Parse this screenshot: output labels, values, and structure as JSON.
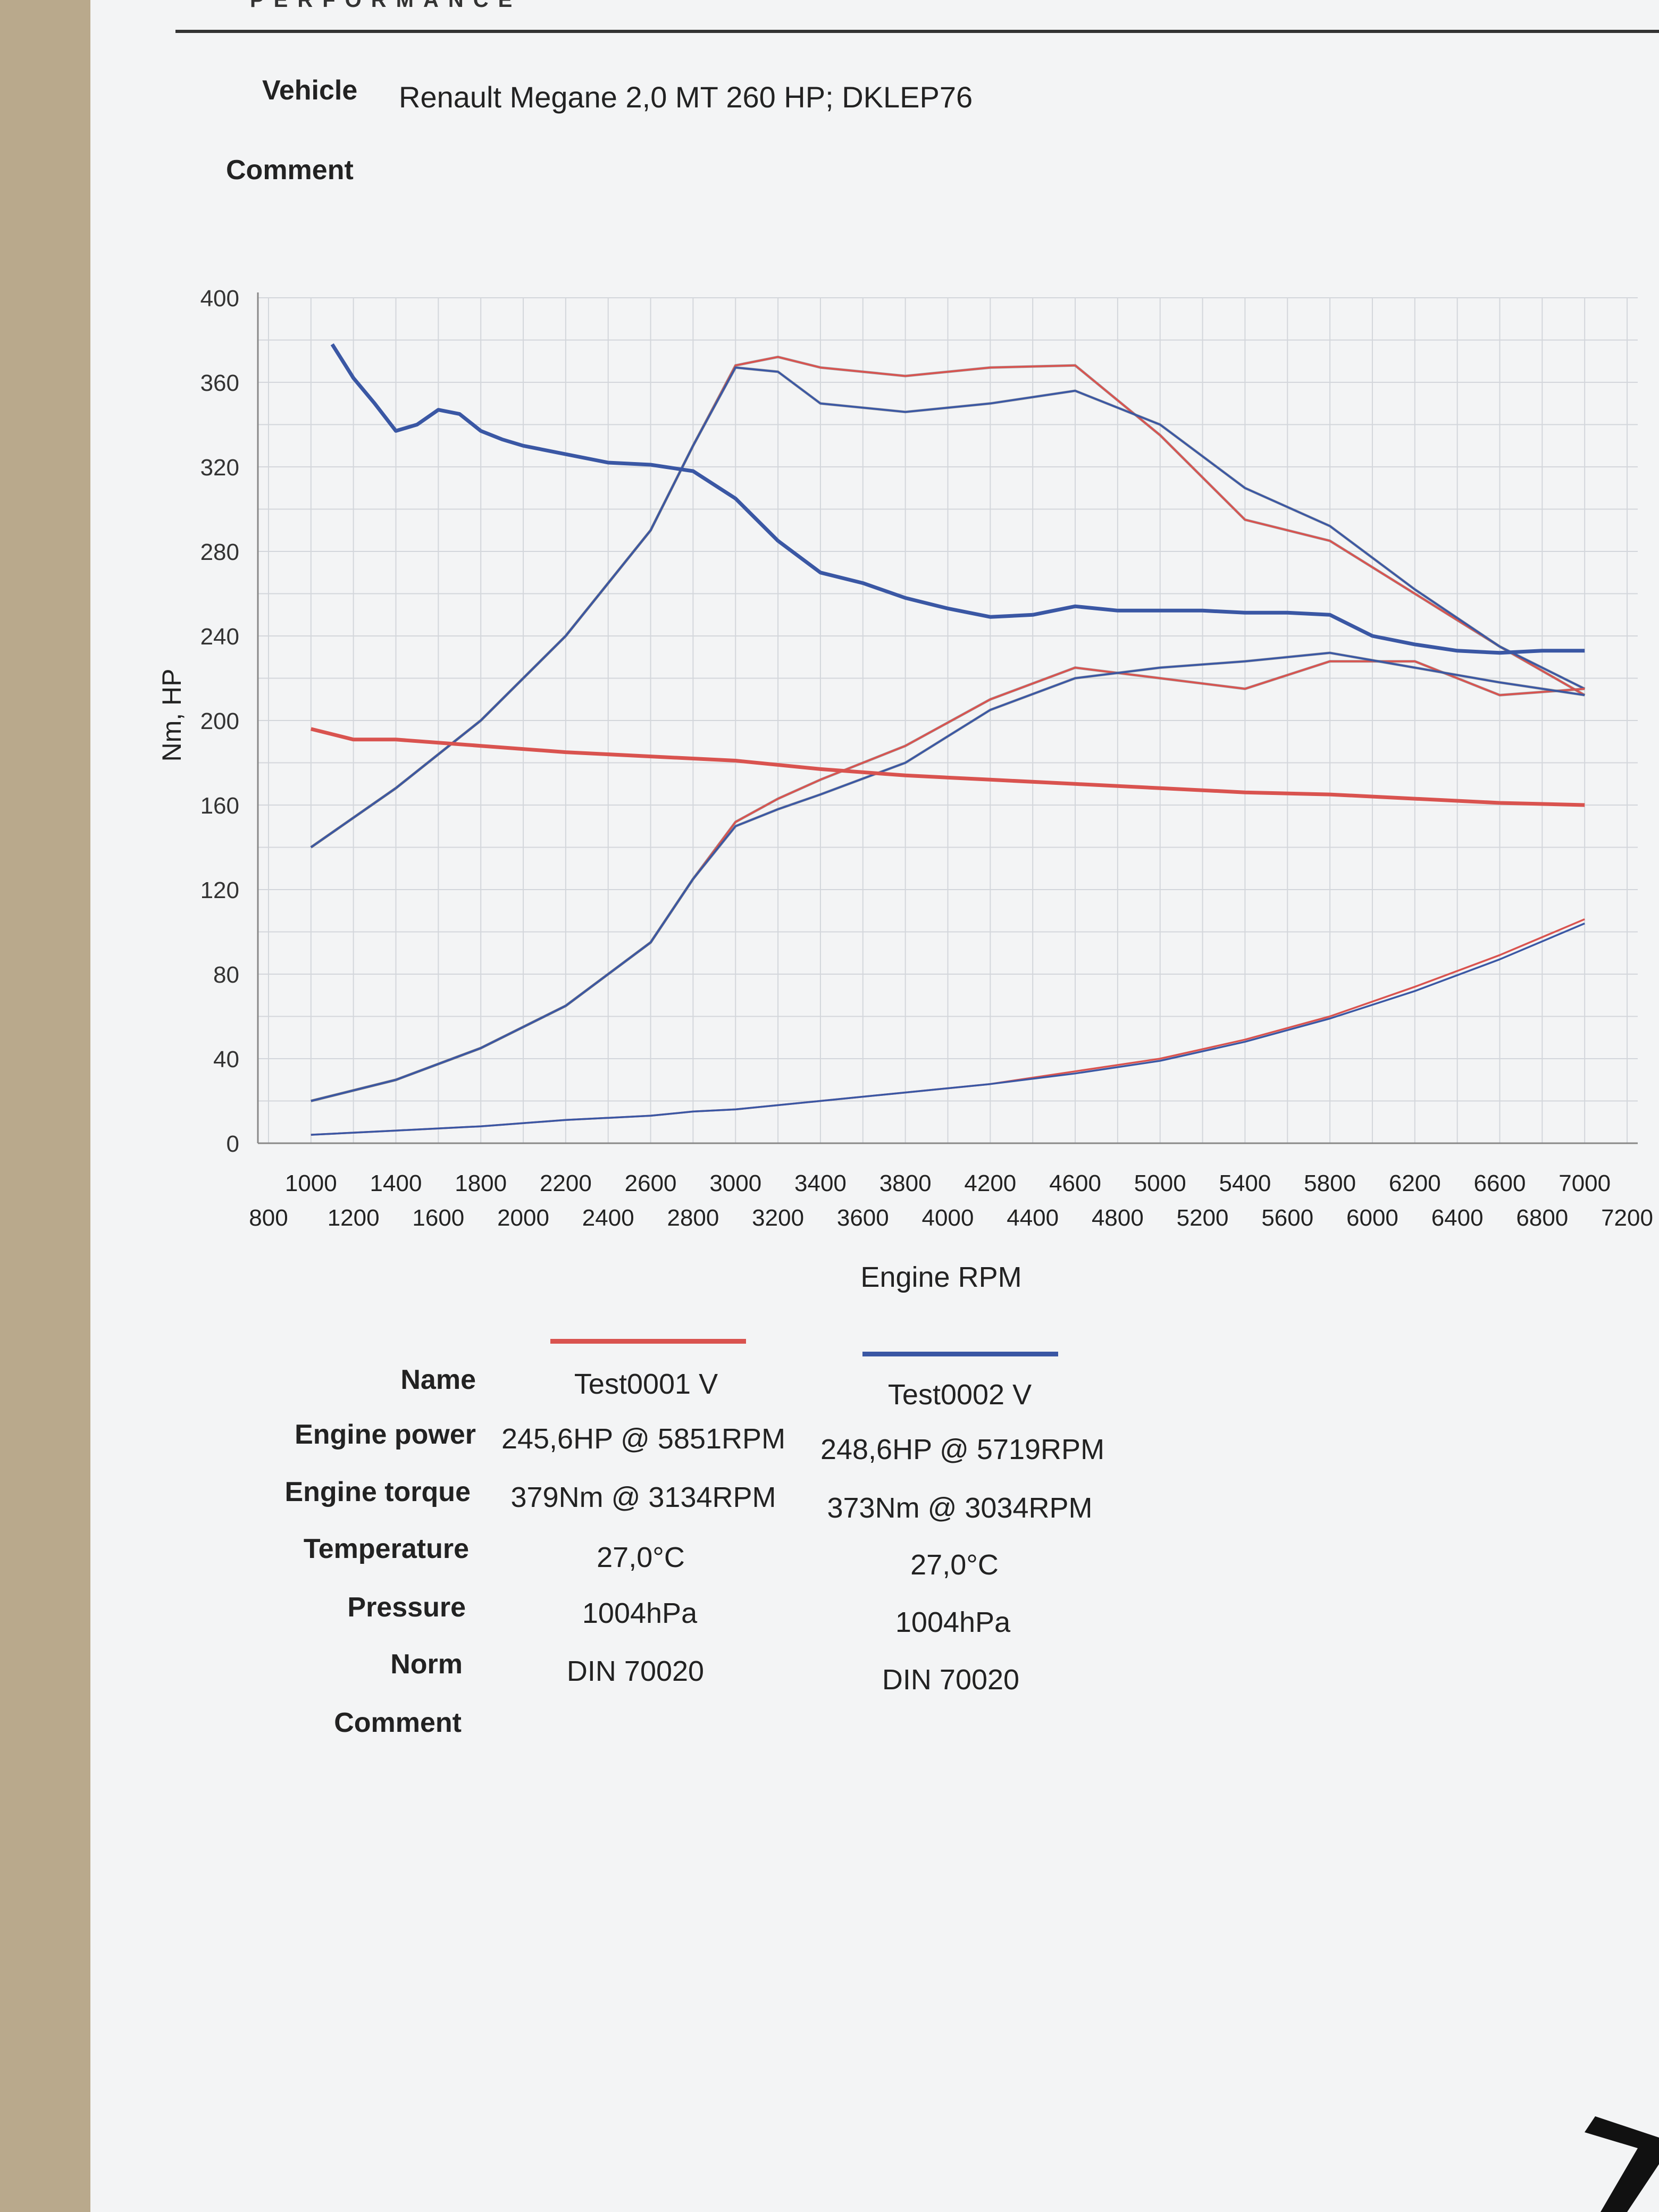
{
  "header": {
    "brand_text": "PERFORMANCE",
    "vehicle_label": "Vehicle",
    "vehicle_value": "Renault Megane 2,0 MT 260 HP; DKLEP76",
    "comment_label": "Comment"
  },
  "colors": {
    "red": "#d9534f",
    "blue": "#3a57a4",
    "grey": "#666a70",
    "grid": "#d3d6db"
  },
  "chart_data": {
    "type": "line",
    "ylabel": "Nm, HP",
    "xlabel": "Engine RPM",
    "xlim": [
      750,
      7250
    ],
    "ylim": [
      0,
      400
    ],
    "yticks": [
      0,
      40,
      80,
      120,
      160,
      200,
      240,
      280,
      320,
      360,
      400
    ],
    "xticks_upper": [
      1000,
      1400,
      1800,
      2200,
      2600,
      3000,
      3400,
      3800,
      4200,
      4600,
      5000,
      5400,
      5800,
      6200,
      6600,
      7000
    ],
    "xticks_lower": [
      800,
      1200,
      1600,
      2000,
      2400,
      2800,
      3200,
      3600,
      4000,
      4400,
      4800,
      5200,
      5600,
      6000,
      6400,
      6800,
      7200
    ],
    "grid": true,
    "series": [
      {
        "name": "Test0001 V",
        "kind": "torque",
        "color": "#d9534f",
        "x": [
          1000,
          1400,
          1800,
          2200,
          2600,
          2800,
          3000,
          3200,
          3400,
          3800,
          4200,
          4600,
          5000,
          5400,
          5800,
          6200,
          6600,
          7000
        ],
        "y": [
          140,
          168,
          200,
          240,
          290,
          330,
          368,
          372,
          367,
          363,
          367,
          368,
          335,
          295,
          285,
          260,
          235,
          212
        ]
      },
      {
        "name": "Test0002 V",
        "kind": "torque",
        "color": "#3a57a4",
        "x": [
          1000,
          1400,
          1800,
          2200,
          2600,
          2800,
          3000,
          3200,
          3400,
          3800,
          4200,
          4600,
          5000,
          5400,
          5800,
          6200,
          6600,
          7000
        ],
        "y": [
          140,
          168,
          200,
          240,
          290,
          330,
          367,
          365,
          350,
          346,
          350,
          356,
          340,
          310,
          292,
          262,
          235,
          215
        ]
      },
      {
        "name": "Test0001 V",
        "kind": "power",
        "color": "#d9534f",
        "x": [
          1000,
          1400,
          1800,
          2200,
          2600,
          2800,
          3000,
          3200,
          3400,
          3800,
          4200,
          4600,
          5000,
          5400,
          5800,
          6200,
          6600,
          7000
        ],
        "y": [
          20,
          30,
          45,
          65,
          95,
          125,
          152,
          163,
          172,
          188,
          210,
          225,
          220,
          215,
          228,
          228,
          212,
          215
        ]
      },
      {
        "name": "Test0002 V",
        "kind": "power",
        "color": "#3a57a4",
        "x": [
          1000,
          1400,
          1800,
          2200,
          2600,
          2800,
          3000,
          3200,
          3400,
          3800,
          4200,
          4600,
          5000,
          5400,
          5800,
          6200,
          6600,
          7000
        ],
        "y": [
          20,
          30,
          45,
          65,
          95,
          125,
          150,
          158,
          165,
          180,
          205,
          220,
          225,
          228,
          232,
          225,
          218,
          212
        ]
      },
      {
        "name": "",
        "kind": "loss",
        "color": "#d9534f",
        "x": [
          1000,
          1400,
          1800,
          2200,
          2600,
          2800,
          3000,
          3400,
          3800,
          4200,
          4600,
          5000,
          5400,
          5800,
          6200,
          6600,
          7000
        ],
        "y": [
          4,
          6,
          8,
          11,
          13,
          15,
          16,
          20,
          24,
          28,
          34,
          40,
          49,
          60,
          74,
          89,
          106
        ]
      },
      {
        "name": "",
        "kind": "loss",
        "color": "#3a57a4",
        "x": [
          1000,
          1400,
          1800,
          2200,
          2600,
          2800,
          3000,
          3400,
          3800,
          4200,
          4600,
          5000,
          5400,
          5800,
          6200,
          6600,
          7000
        ],
        "y": [
          4,
          6,
          8,
          11,
          13,
          15,
          16,
          20,
          24,
          28,
          33,
          39,
          48,
          59,
          72,
          87,
          104
        ]
      },
      {
        "name": "",
        "kind": "correction",
        "color": "#d9534f",
        "x": [
          1000,
          1200,
          1400,
          1800,
          2200,
          2600,
          3000,
          3400,
          3800,
          4200,
          4600,
          5000,
          5400,
          5800,
          6200,
          6600,
          7000
        ],
        "y": [
          196,
          191,
          191,
          188,
          185,
          183,
          181,
          177,
          174,
          172,
          170,
          168,
          166,
          165,
          163,
          161,
          160
        ]
      },
      {
        "name": "",
        "kind": "lambda",
        "color": "#3a57a4",
        "x": [
          1100,
          1200,
          1300,
          1400,
          1500,
          1600,
          1700,
          1800,
          1900,
          2000,
          2200,
          2400,
          2600,
          2800,
          3000,
          3200,
          3400,
          3600,
          3800,
          4000,
          4200,
          4400,
          4600,
          4800,
          5000,
          5200,
          5400,
          5600,
          5800,
          6000,
          6200,
          6400,
          6600,
          6800,
          7000
        ],
        "y": [
          378,
          362,
          350,
          337,
          340,
          347,
          345,
          337,
          333,
          330,
          326,
          322,
          321,
          318,
          305,
          285,
          270,
          265,
          258,
          253,
          249,
          250,
          254,
          252,
          252,
          252,
          251,
          251,
          250,
          240,
          236,
          233,
          232,
          233,
          233
        ]
      }
    ]
  },
  "legend": {
    "names": [
      "Test0001 V",
      "Test0002 V"
    ]
  },
  "results": {
    "labels": [
      "Name",
      "Engine power",
      "Engine torque",
      "Temperature",
      "Pressure",
      "Norm",
      "Comment"
    ],
    "col1": {
      "name": "Test0001 V",
      "power": "245,6HP @  5851RPM",
      "torque": "379Nm @ 3134RPM",
      "temp": "27,0°C",
      "pressure": "1004hPa",
      "norm": "DIN 70020"
    },
    "col2": {
      "name": "Test0002 V",
      "power": "248,6HP @  5719RPM",
      "torque": "373Nm @ 3034RPM",
      "temp": "27,0°C",
      "pressure": "1004hPa",
      "norm": "DIN 70020"
    }
  }
}
